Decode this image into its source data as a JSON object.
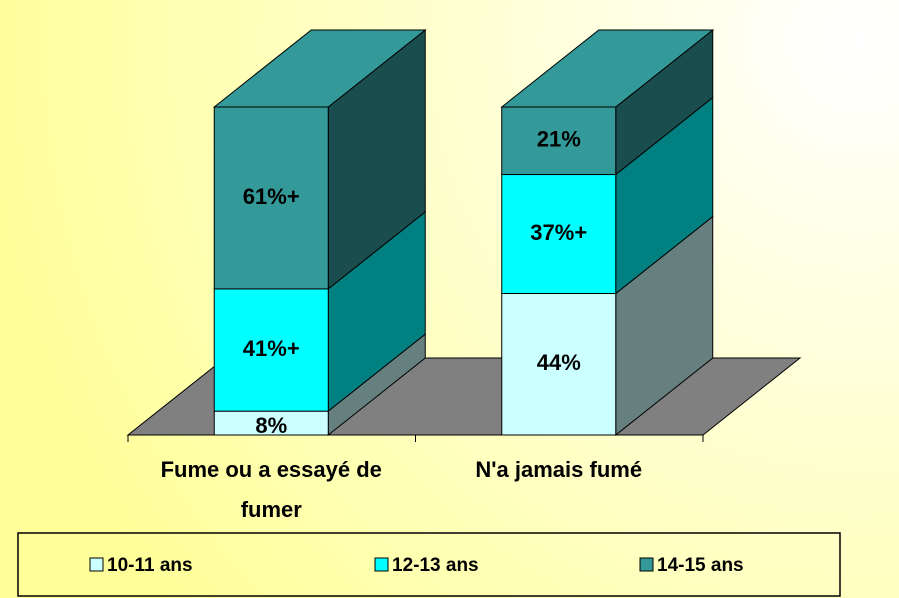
{
  "chart_data": {
    "type": "bar",
    "stacking": "percent",
    "categories": [
      "Fume ou a essayé de fumer",
      "N'a jamais fumé"
    ],
    "series": [
      {
        "name": "10-11 ans",
        "color": "#ccffff",
        "values": [
          8,
          44
        ],
        "value_labels": [
          "8%",
          "44%"
        ]
      },
      {
        "name": "12-13 ans",
        "color": "#00ffff",
        "values": [
          41,
          37
        ],
        "value_labels": [
          "41%+",
          "37%+"
        ]
      },
      {
        "name": "14-15 ans",
        "color": "#339999",
        "values": [
          61,
          21
        ],
        "value_labels": [
          "61%+",
          "21%"
        ]
      }
    ],
    "legend": "bottom"
  }
}
